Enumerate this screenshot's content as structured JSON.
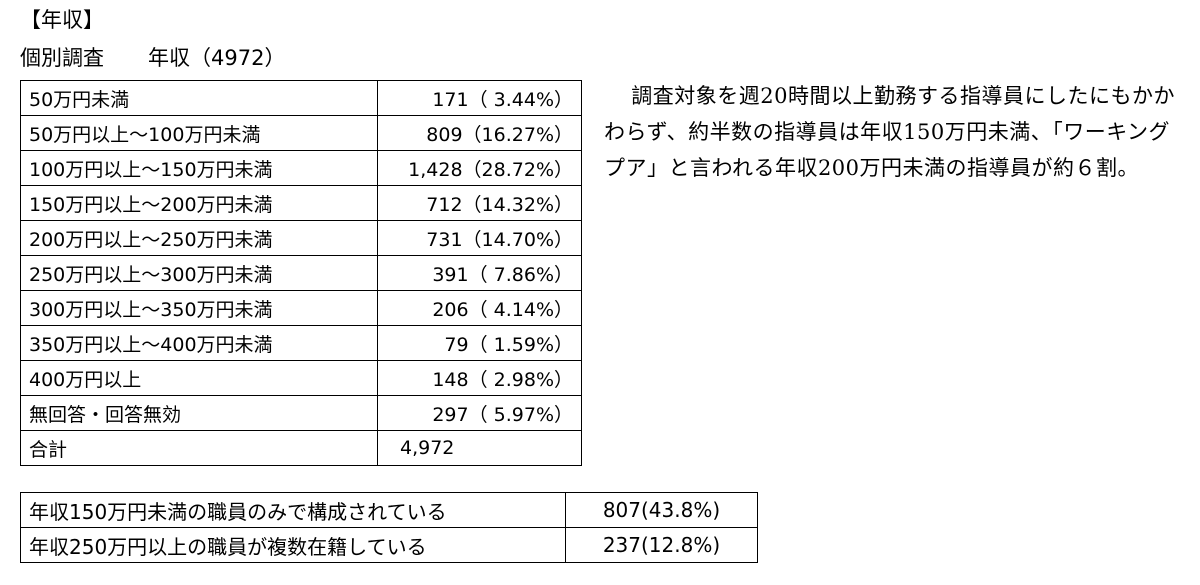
{
  "header": {
    "title": "【年収】",
    "subtitle": "個別調査",
    "subtitle_note": "年収（4972）"
  },
  "table": {
    "rows": [
      [
        "50万円未満",
        "171（ 3.44%）"
      ],
      [
        "50万円以上～100万円未満",
        "809（16.27%）"
      ],
      [
        "100万円以上～150万円未満",
        "1,428（28.72%）"
      ],
      [
        "150万円以上～200万円未満",
        "712（14.32%）"
      ],
      [
        "200万円以上～250万円未満",
        "731（14.70%）"
      ],
      [
        "250万円以上～300万円未満",
        "391（ 7.86%）"
      ],
      [
        "300万円以上～350万円未満",
        "206（ 4.14%）"
      ],
      [
        "350万円以上～400万円未満",
        "79（ 1.59%）"
      ],
      [
        "400万円以上",
        "148（ 2.98%）"
      ],
      [
        "無回答・回答無効",
        "297（ 5.97%）"
      ]
    ],
    "total": [
      "合計",
      "4,972"
    ]
  },
  "table2": {
    "rows": [
      [
        "年収150万円未満の職員のみで構成されている",
        "807(43.8%)"
      ],
      [
        "年収250万円以上の職員が複数在籍している",
        "237(12.8%)"
      ]
    ]
  },
  "note": "調査対象を週20時間以上勤務する指導員にしたにもかかわらず、約半数の指導員は年収150万円未満、「ワーキングプア」と言われる年収200万円未満の指導員が約６割。"
}
